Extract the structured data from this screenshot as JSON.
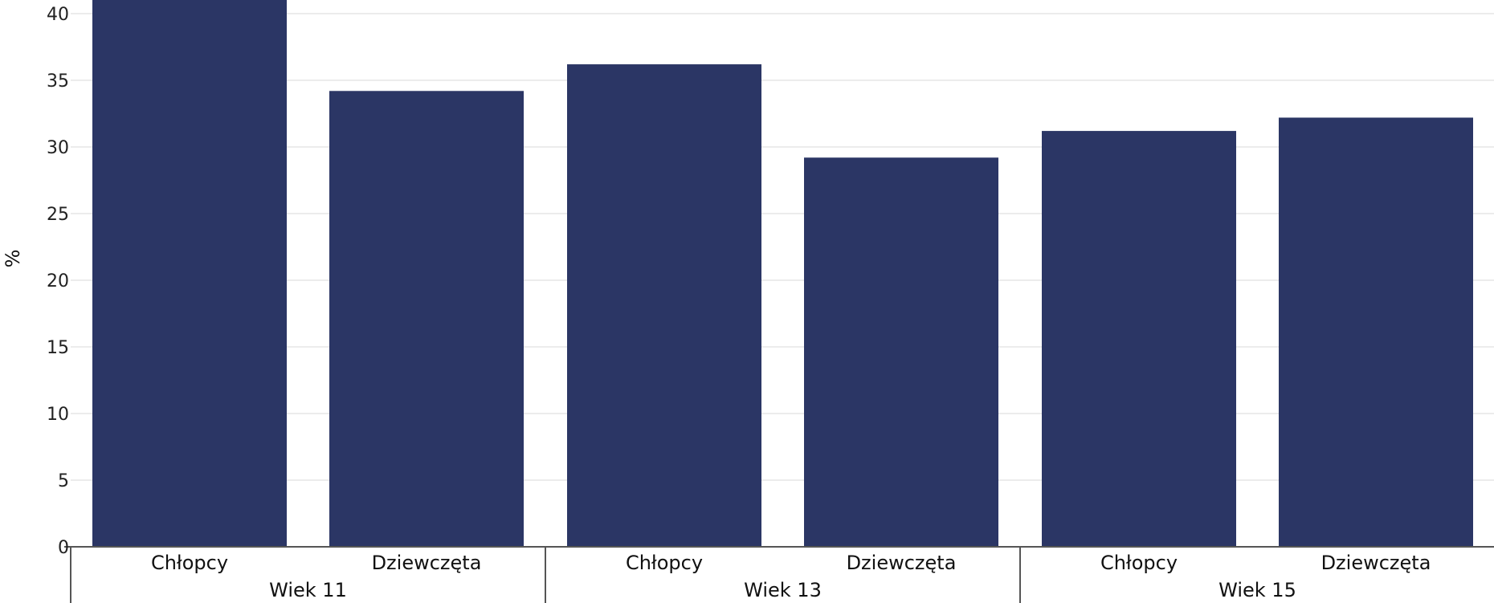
{
  "chart_data": {
    "type": "bar",
    "ylabel": "%",
    "ylim": [
      0,
      40
    ],
    "yticks": [
      0,
      5,
      10,
      15,
      20,
      25,
      30,
      35,
      40
    ],
    "grid": true,
    "groups": [
      {
        "name": "Wiek 11",
        "bars": [
          {
            "category": "Chłopcy",
            "value": 42.5
          },
          {
            "category": "Dziewczęta",
            "value": 34.2
          }
        ]
      },
      {
        "name": "Wiek 13",
        "bars": [
          {
            "category": "Chłopcy",
            "value": 36.2
          },
          {
            "category": "Dziewczęta",
            "value": 29.2
          }
        ]
      },
      {
        "name": "Wiek 15",
        "bars": [
          {
            "category": "Chłopcy",
            "value": 31.2
          },
          {
            "category": "Dziewczęta",
            "value": 32.2
          }
        ]
      }
    ]
  },
  "colors": {
    "bar": "#2b3665",
    "grid": "#e6e6e6",
    "axis": "#555555"
  }
}
